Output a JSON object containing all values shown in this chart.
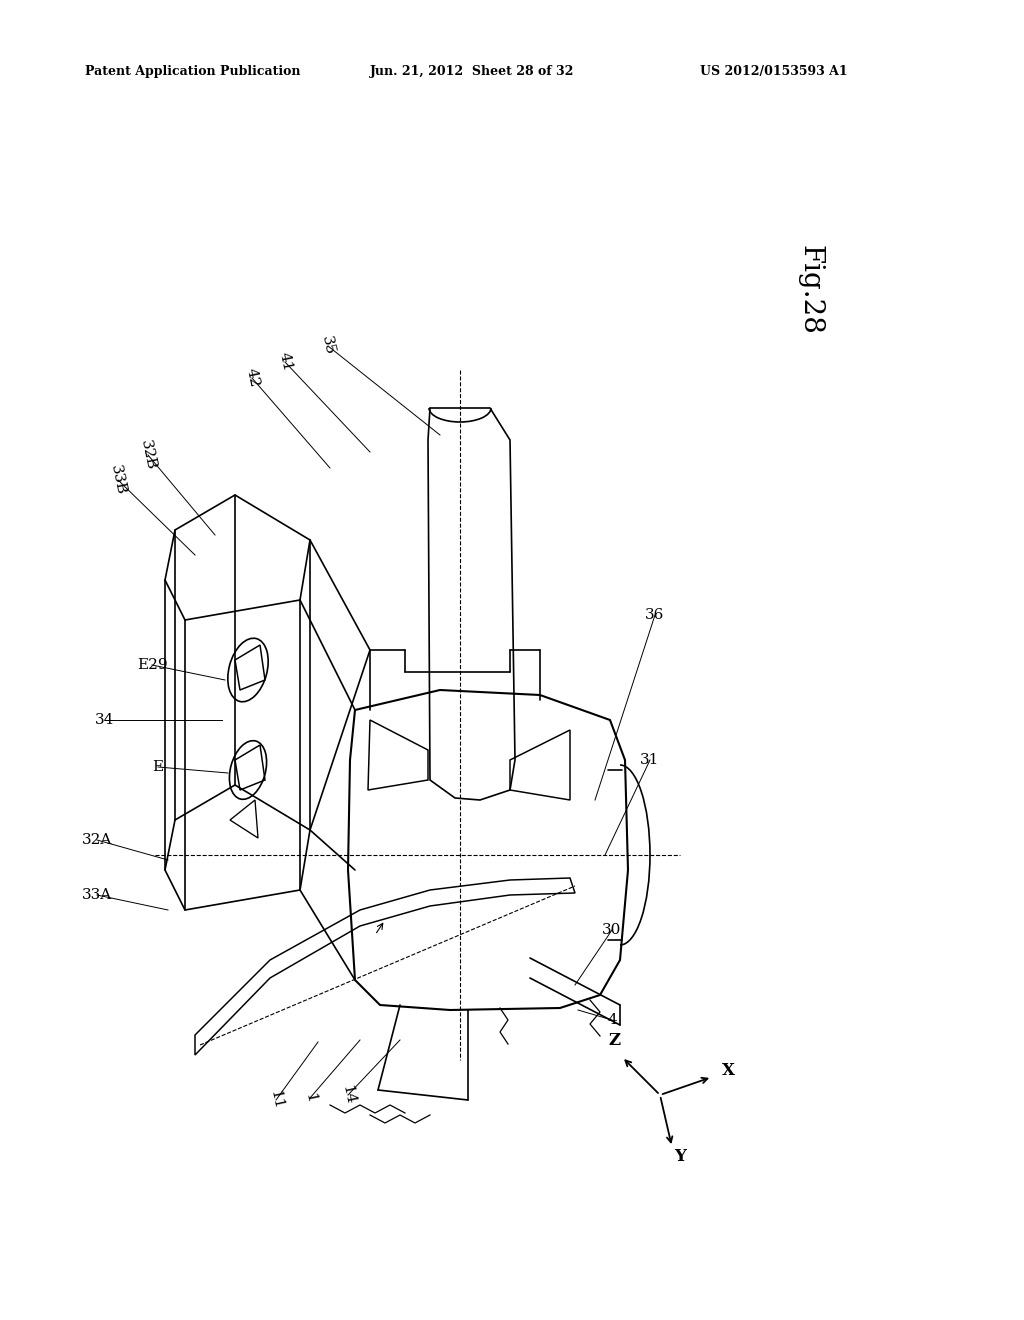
{
  "bg_color": "#ffffff",
  "header_left": "Patent Application Publication",
  "header_center": "Jun. 21, 2012  Sheet 28 of 32",
  "header_right": "US 2012/0153593 A1",
  "fig_label": "Fig.28",
  "line_color": "#000000",
  "line_width": 1.2,
  "axis_labels": [
    "Z",
    "X",
    "Y"
  ]
}
